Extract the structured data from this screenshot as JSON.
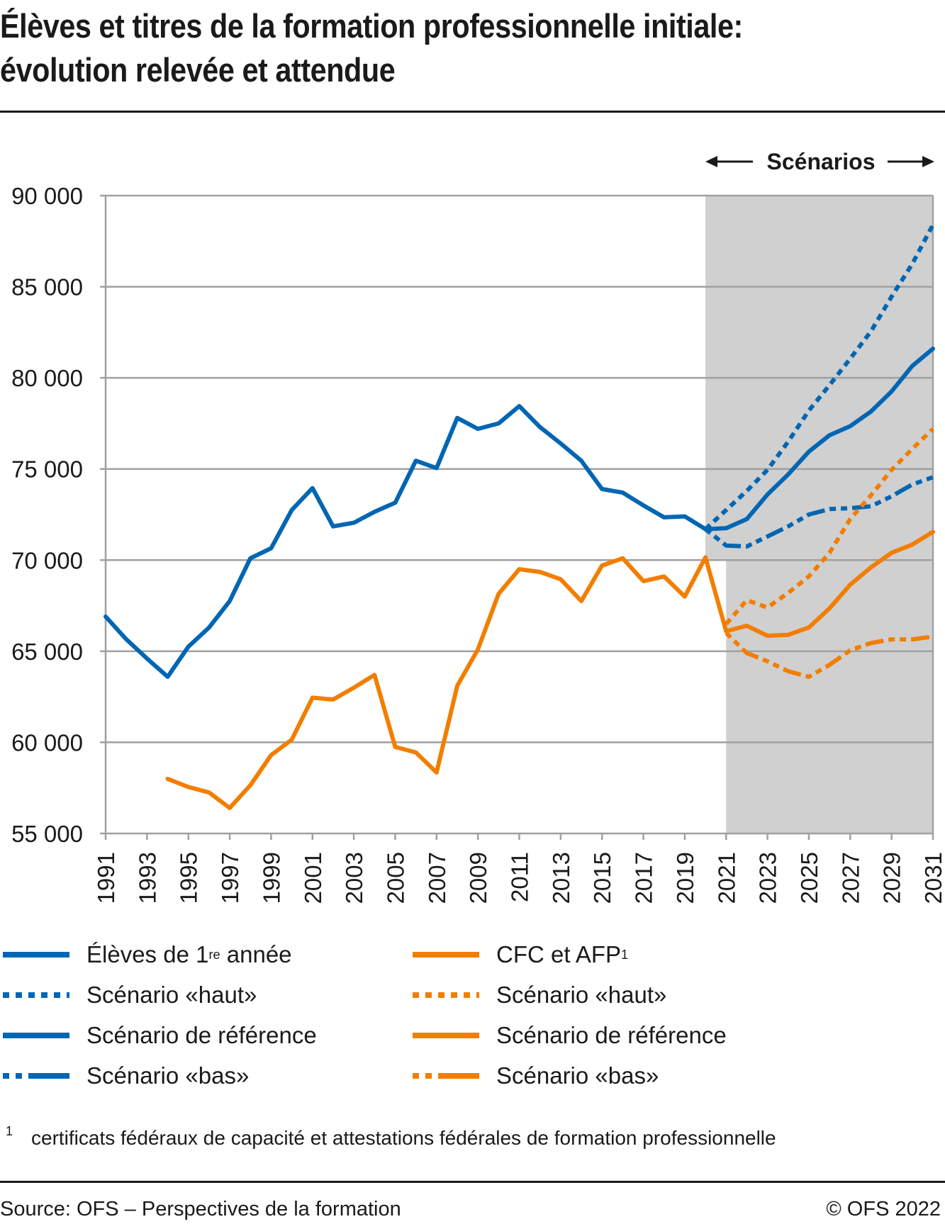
{
  "header": {
    "title_line1": "Élèves et titres de la formation professionnelle initiale:",
    "title_line2": "évolution relevée et attendue"
  },
  "chart_data": {
    "type": "line",
    "title": "Élèves et titres de la formation professionnelle initiale: évolution relevée et attendue",
    "xlabel": "",
    "ylabel": "",
    "xlim": [
      1991,
      2031
    ],
    "ylim": [
      55000,
      90000
    ],
    "y_ticks": [
      55000,
      60000,
      65000,
      70000,
      75000,
      80000,
      85000,
      90000
    ],
    "y_tick_labels": [
      "55 000",
      "60 000",
      "65 000",
      "70 000",
      "75 000",
      "80 000",
      "85 000",
      "90 000"
    ],
    "x_ticks": [
      1991,
      1993,
      1995,
      1997,
      1999,
      2001,
      2003,
      2005,
      2007,
      2009,
      2011,
      2013,
      2015,
      2017,
      2019,
      2021,
      2023,
      2025,
      2027,
      2029,
      2031
    ],
    "grid": "horizontal",
    "scenario_band": {
      "label": "Scénarios",
      "from": 2020,
      "to": 2031
    },
    "colors": {
      "blue": "#0066b3",
      "orange": "#f27e00",
      "band": "#d0d0d0",
      "grid": "#a0a0a0"
    },
    "series": [
      {
        "name": "Élèves de 1re année",
        "color": "#0066b3",
        "style": "solid",
        "x": [
          1991,
          1992,
          1993,
          1994,
          1995,
          1996,
          1997,
          1998,
          1999,
          2000,
          2001,
          2002,
          2003,
          2004,
          2005,
          2006,
          2007,
          2008,
          2009,
          2010,
          2011,
          2012,
          2013,
          2014,
          2015,
          2016,
          2017,
          2018,
          2019,
          2020
        ],
        "values": [
          66900,
          65650,
          64600,
          63600,
          65250,
          66300,
          67750,
          70100,
          70650,
          72750,
          73950,
          71850,
          72050,
          72650,
          73150,
          75450,
          75050,
          77800,
          77200,
          77500,
          78450,
          77300,
          76400,
          75450,
          73900,
          73700,
          73000,
          72350,
          72400,
          71700
        ]
      },
      {
        "name": "Élèves – Scénario «haut»",
        "color": "#0066b3",
        "style": "dotted",
        "x": [
          2020,
          2021,
          2022,
          2023,
          2024,
          2025,
          2026,
          2027,
          2028,
          2029,
          2030,
          2031
        ],
        "values": [
          71700,
          72750,
          73800,
          74950,
          76500,
          78200,
          79600,
          81050,
          82550,
          84450,
          86250,
          88400
        ]
      },
      {
        "name": "Élèves – Scénario de référence",
        "color": "#0066b3",
        "style": "solid",
        "x": [
          2020,
          2021,
          2022,
          2023,
          2024,
          2025,
          2026,
          2027,
          2028,
          2029,
          2030,
          2031
        ],
        "values": [
          71700,
          71750,
          72250,
          73600,
          74700,
          75950,
          76850,
          77350,
          78150,
          79250,
          80650,
          81600
        ]
      },
      {
        "name": "Élèves – Scénario «bas»",
        "color": "#0066b3",
        "style": "dashdot",
        "x": [
          2020,
          2021,
          2022,
          2023,
          2024,
          2025,
          2026,
          2027,
          2028,
          2029,
          2030,
          2031
        ],
        "values": [
          71700,
          70800,
          70750,
          71300,
          71850,
          72500,
          72800,
          72850,
          72950,
          73500,
          74150,
          74550
        ]
      },
      {
        "name": "CFC et AFP",
        "color": "#f27e00",
        "style": "solid",
        "x": [
          1994,
          1995,
          1996,
          1997,
          1998,
          1999,
          2000,
          2001,
          2002,
          2003,
          2004,
          2005,
          2006,
          2007,
          2008,
          2009,
          2010,
          2011,
          2012,
          2013,
          2014,
          2015,
          2016,
          2017,
          2018,
          2019,
          2020,
          2021
        ],
        "values": [
          58000,
          57550,
          57250,
          56400,
          57650,
          59300,
          60150,
          62450,
          62350,
          63000,
          63700,
          59750,
          59450,
          58350,
          63100,
          65100,
          68150,
          69500,
          69350,
          68950,
          67750,
          69700,
          70100,
          68850,
          69100,
          68000,
          70150,
          66100
        ]
      },
      {
        "name": "CFC et AFP – Scénario «haut»",
        "color": "#f27e00",
        "style": "dotted",
        "x": [
          2021,
          2022,
          2023,
          2024,
          2025,
          2026,
          2027,
          2028,
          2029,
          2030,
          2031
        ],
        "values": [
          66500,
          67800,
          67400,
          68200,
          69100,
          70400,
          72250,
          73550,
          74950,
          76100,
          77200
        ]
      },
      {
        "name": "CFC et AFP – Scénario de référence",
        "color": "#f27e00",
        "style": "solid",
        "x": [
          2021,
          2022,
          2023,
          2024,
          2025,
          2026,
          2027,
          2028,
          2029,
          2030,
          2031
        ],
        "values": [
          66100,
          66400,
          65850,
          65900,
          66300,
          67350,
          68650,
          69600,
          70400,
          70850,
          71550
        ]
      },
      {
        "name": "CFC et AFP – Scénario «bas»",
        "color": "#f27e00",
        "style": "dashdot",
        "x": [
          2021,
          2022,
          2023,
          2024,
          2025,
          2026,
          2027,
          2028,
          2029,
          2030,
          2031
        ],
        "values": [
          66000,
          64900,
          64450,
          63900,
          63600,
          64250,
          65050,
          65450,
          65650,
          65650,
          65800
        ]
      }
    ]
  },
  "legend": {
    "left": [
      {
        "label": "Élèves de 1",
        "sup": "re",
        "label_after": " année",
        "color": "#0066b3",
        "style": "solid"
      },
      {
        "label": "Scénario «haut»",
        "color": "#0066b3",
        "style": "dotted"
      },
      {
        "label": "Scénario de référence",
        "color": "#0066b3",
        "style": "solid"
      },
      {
        "label": "Scénario «bas»",
        "color": "#0066b3",
        "style": "dashdot"
      }
    ],
    "right": [
      {
        "label": "CFC et AFP",
        "sup": "1",
        "label_after": "",
        "color": "#f27e00",
        "style": "solid"
      },
      {
        "label": "Scénario «haut»",
        "color": "#f27e00",
        "style": "dotted"
      },
      {
        "label": "Scénario de référence",
        "color": "#f27e00",
        "style": "solid"
      },
      {
        "label": "Scénario «bas»",
        "color": "#f27e00",
        "style": "dashdot"
      }
    ]
  },
  "footnote": {
    "mark": "1",
    "text": "certificats fédéraux de capacité et attestations fédérales de formation professionnelle"
  },
  "footer": {
    "source": "Source: OFS – Perspectives de la formation",
    "copyright": "© OFS 2022"
  }
}
